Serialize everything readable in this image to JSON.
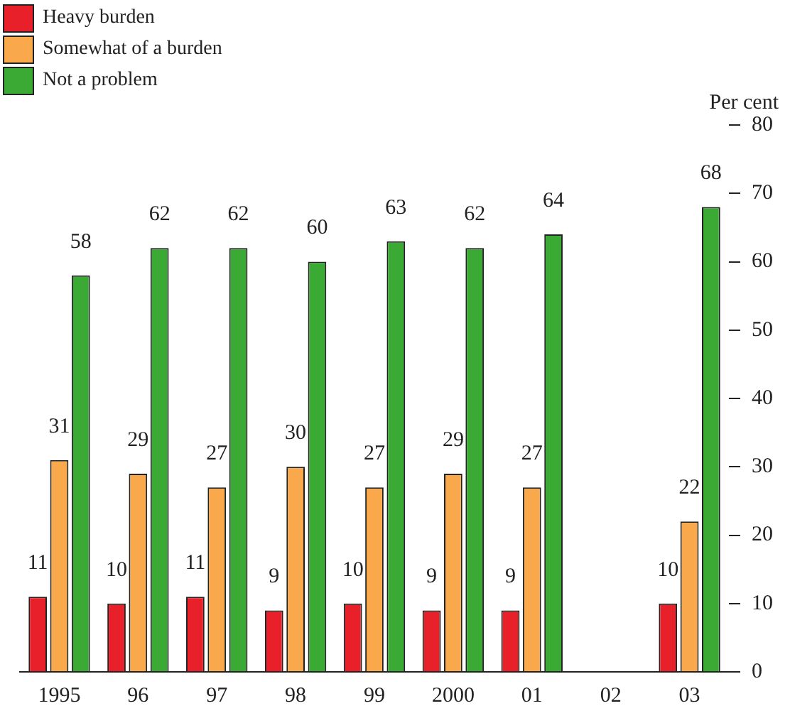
{
  "chart_data": {
    "type": "bar",
    "ylabel": "Per cent",
    "categories": [
      "1995",
      "96",
      "97",
      "98",
      "99",
      "2000",
      "01",
      "02",
      "03"
    ],
    "series": [
      {
        "name": "Heavy burden",
        "color": "#e8202a",
        "values": [
          11,
          10,
          11,
          9,
          10,
          9,
          9,
          null,
          10
        ]
      },
      {
        "name": "Somewhat of a burden",
        "color": "#f9a94b",
        "values": [
          31,
          29,
          27,
          30,
          27,
          29,
          27,
          null,
          22
        ]
      },
      {
        "name": "Not a problem",
        "color": "#3aaa35",
        "values": [
          58,
          62,
          62,
          60,
          63,
          62,
          64,
          null,
          68
        ]
      }
    ],
    "ylim": [
      0,
      80
    ],
    "yticks": [
      0,
      10,
      20,
      30,
      40,
      50,
      60,
      70,
      80
    ],
    "grid": false,
    "legend": "top left",
    "data_labels": true
  }
}
